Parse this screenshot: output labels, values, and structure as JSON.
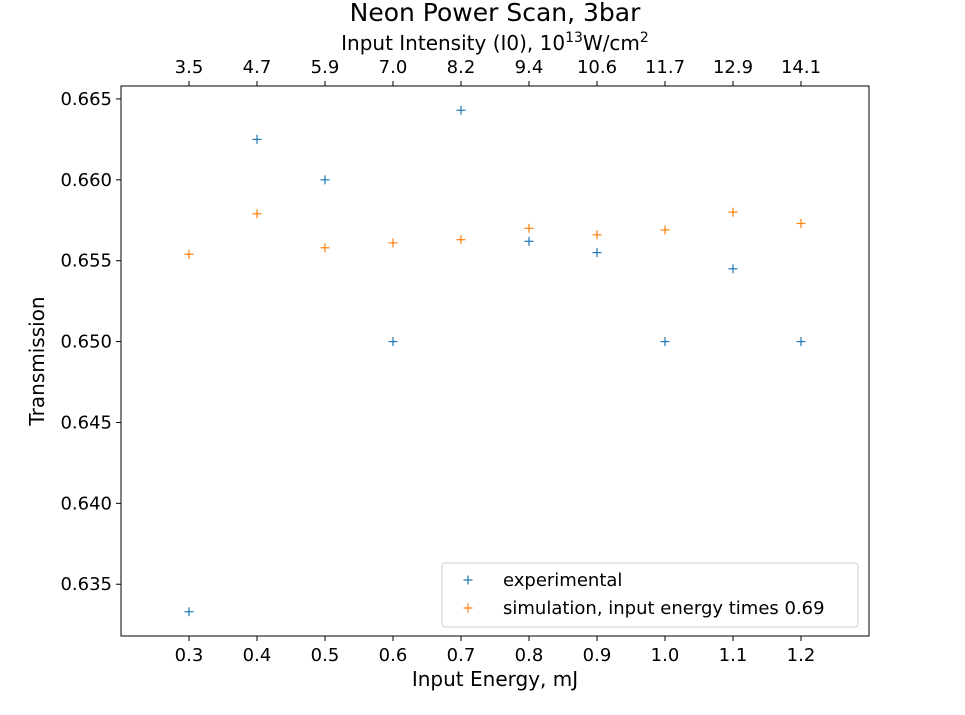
{
  "chart_data": {
    "type": "scatter",
    "title": "Neon Power Scan, 3bar",
    "xlabel": "Input Energy, mJ",
    "ylabel": "Transmission",
    "top_axis": {
      "label_prefix": "Input Intensity (I0), 10",
      "label_exp": "13",
      "label_unit_prefix": "W/cm",
      "label_unit_exp": "2",
      "tick_labels": [
        "3.5",
        "4.7",
        "5.9",
        "7.0",
        "8.2",
        "9.4",
        "10.6",
        "11.7",
        "12.9",
        "14.1"
      ]
    },
    "xlim": [
      0.2,
      1.3
    ],
    "ylim": [
      0.6318,
      0.6658
    ],
    "x_ticks": [
      0.3,
      0.4,
      0.5,
      0.6,
      0.7,
      0.8,
      0.9,
      1.0,
      1.1,
      1.2
    ],
    "x_tick_labels": [
      "0.3",
      "0.4",
      "0.5",
      "0.6",
      "0.7",
      "0.8",
      "0.9",
      "1.0",
      "1.1",
      "1.2"
    ],
    "y_ticks": [
      0.635,
      0.64,
      0.645,
      0.65,
      0.655,
      0.66,
      0.665
    ],
    "y_tick_labels": [
      "0.635",
      "0.640",
      "0.645",
      "0.650",
      "0.655",
      "0.660",
      "0.665"
    ],
    "grid": false,
    "legend_position": "lower-right",
    "series": [
      {
        "name": "experimental",
        "color": "#1f77b4",
        "marker": "plus",
        "x": [
          0.3,
          0.4,
          0.5,
          0.6,
          0.7,
          0.8,
          0.9,
          1.0,
          1.1,
          1.2
        ],
        "y": [
          0.6333,
          0.6625,
          0.66,
          0.65,
          0.6643,
          0.6562,
          0.6555,
          0.65,
          0.6545,
          0.65
        ]
      },
      {
        "name": "simulation, input energy times 0.69",
        "color": "#ff7f0e",
        "marker": "plus",
        "x": [
          0.3,
          0.4,
          0.5,
          0.6,
          0.7,
          0.8,
          0.9,
          1.0,
          1.1,
          1.2
        ],
        "y": [
          0.6554,
          0.6579,
          0.6558,
          0.6561,
          0.6563,
          0.657,
          0.6566,
          0.6569,
          0.658,
          0.6573
        ]
      }
    ]
  }
}
